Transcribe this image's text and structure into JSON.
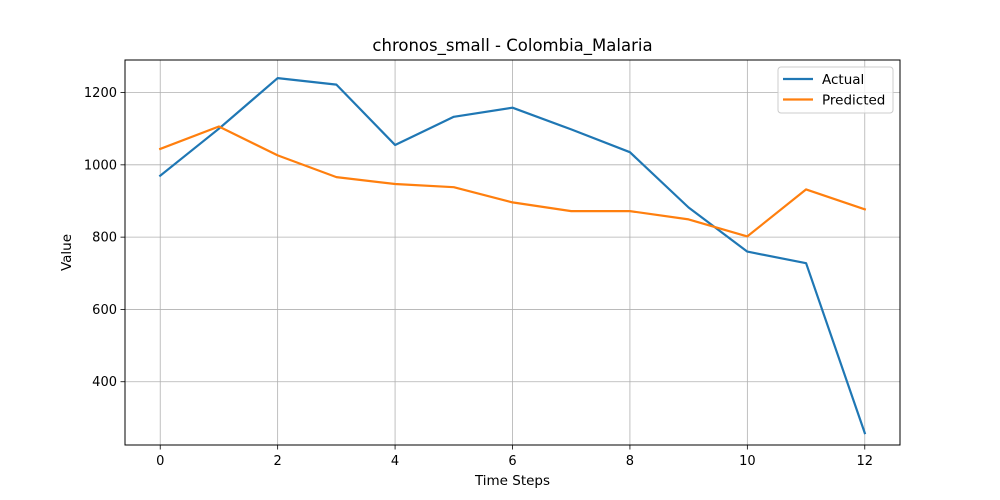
{
  "chart_data": {
    "type": "line",
    "title": "chronos_small - Colombia_Malaria",
    "xlabel": "Time Steps",
    "ylabel": "Value",
    "x": [
      0,
      1,
      2,
      3,
      4,
      5,
      6,
      7,
      8,
      9,
      10,
      11,
      12
    ],
    "xlim": [
      -0.6,
      12.6
    ],
    "ylim": [
      225,
      1290
    ],
    "xticks": [
      0,
      2,
      4,
      6,
      8,
      10,
      12
    ],
    "yticks": [
      400,
      600,
      800,
      1000,
      1200
    ],
    "grid": true,
    "legend_position": "top-right",
    "series": [
      {
        "name": "Actual",
        "color": "#1f77b4",
        "values": [
          970,
          1100,
          1240,
          1222,
          1055,
          1133,
          1158,
          1098,
          1035,
          882,
          760,
          728,
          258
        ]
      },
      {
        "name": "Predicted",
        "color": "#ff7f0e",
        "values": [
          1044,
          1106,
          1026,
          966,
          947,
          938,
          896,
          872,
          872,
          849,
          802,
          932,
          877
        ]
      }
    ]
  }
}
